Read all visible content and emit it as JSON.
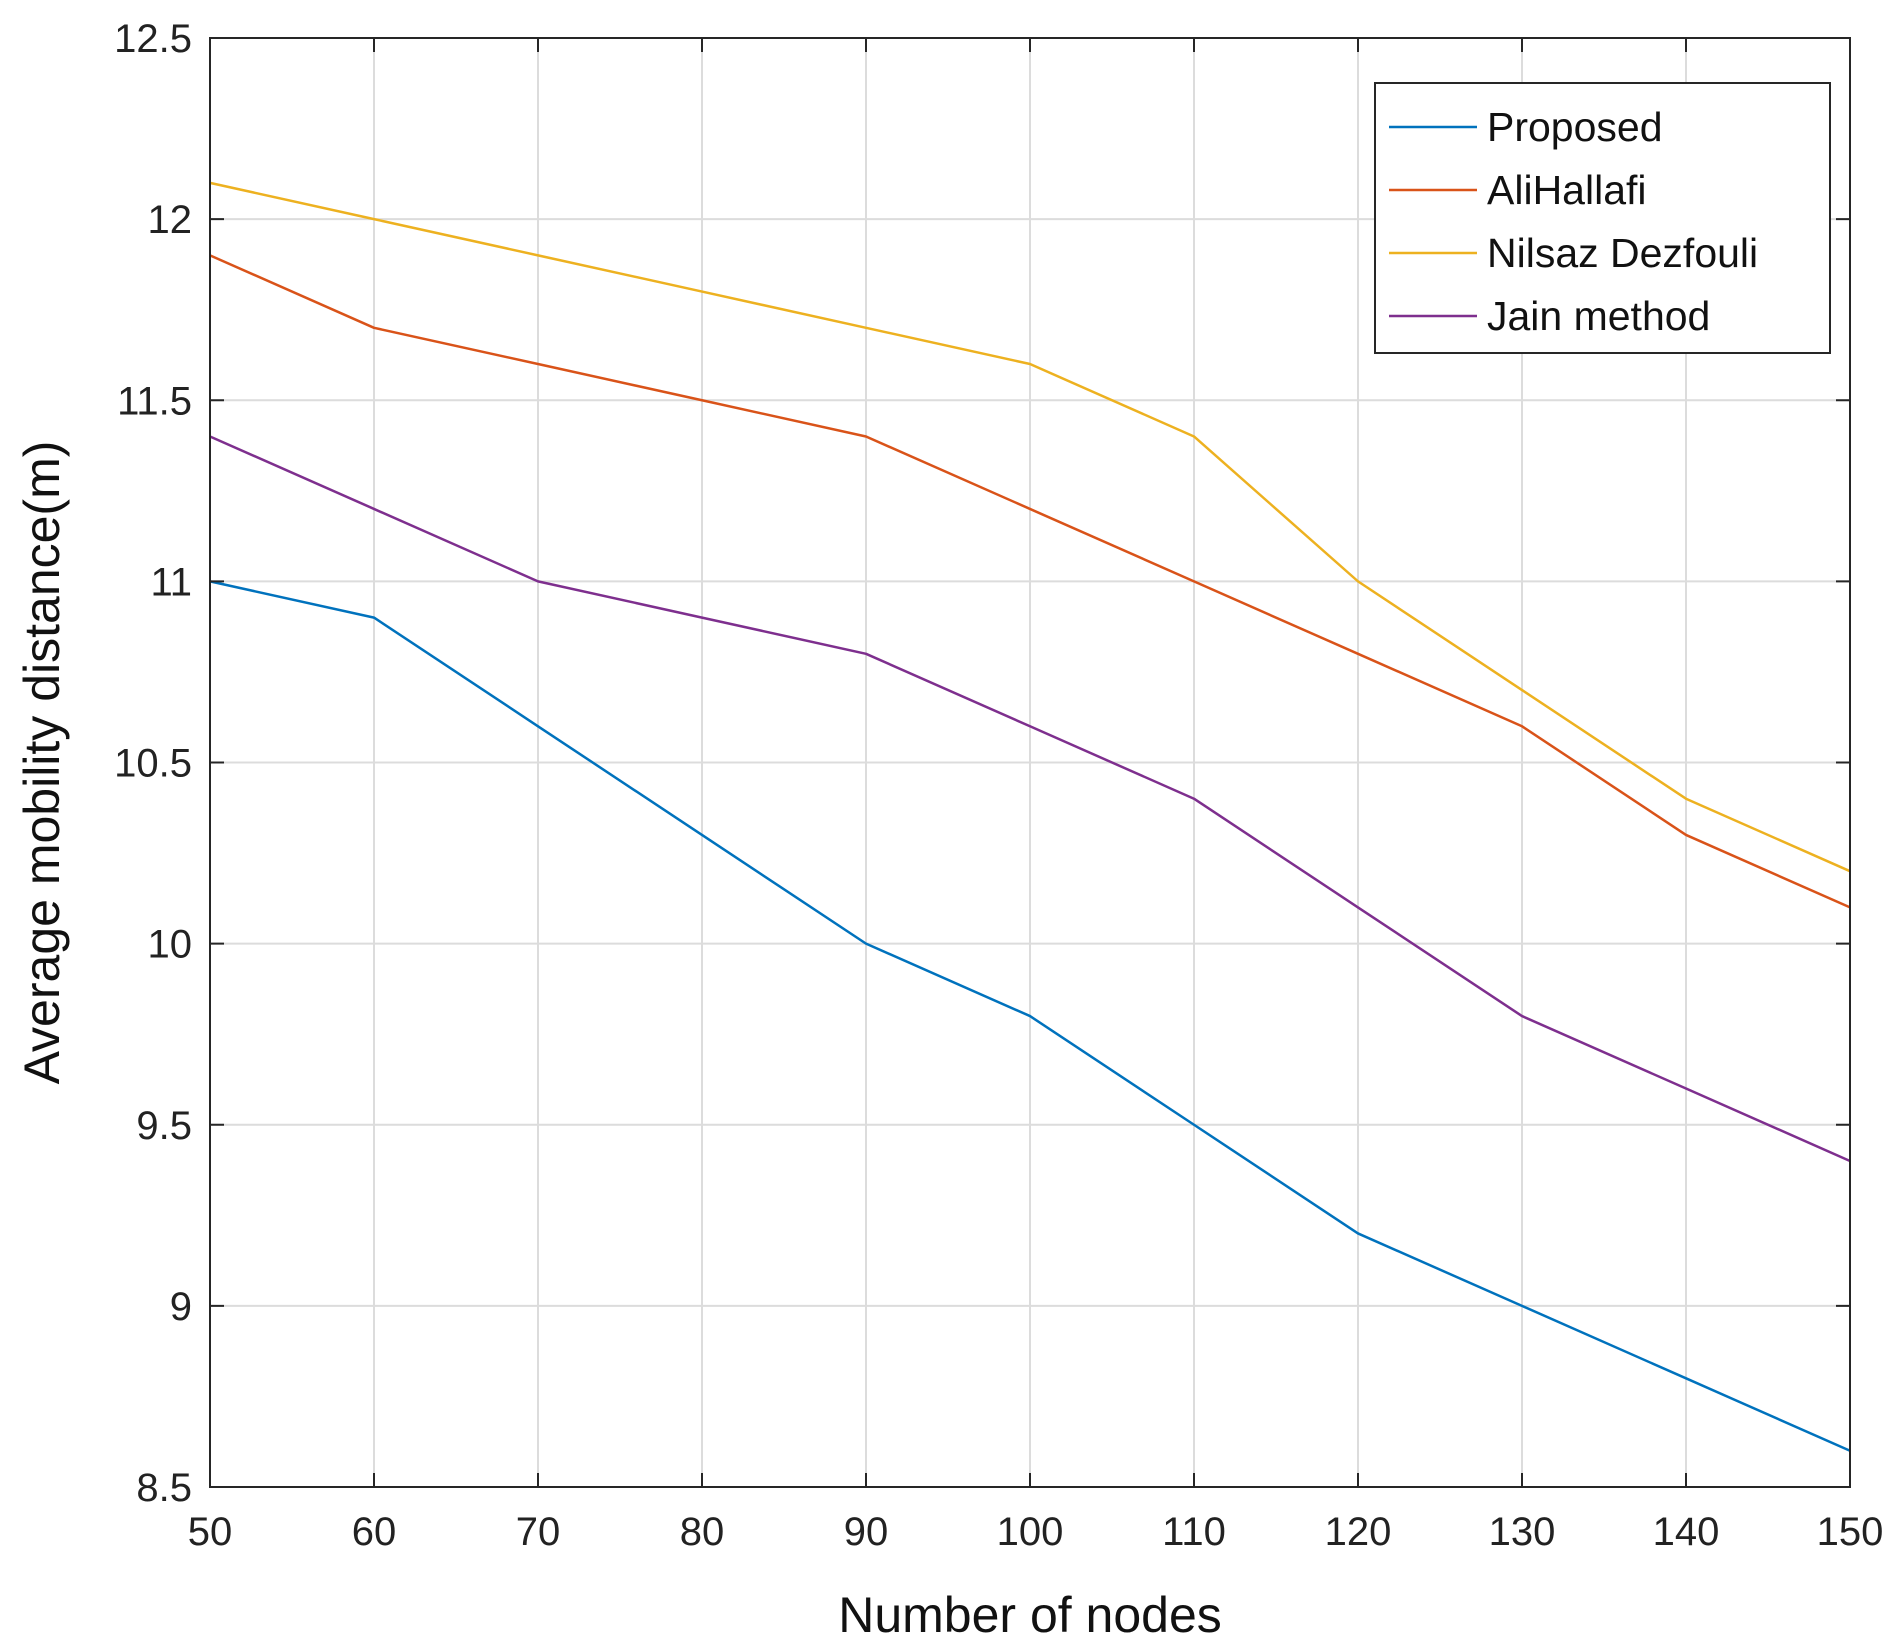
{
  "chart_data": {
    "type": "line",
    "title": "",
    "xlabel": "Number of nodes",
    "ylabel": "Average mobility distance(m)",
    "x": [
      50,
      60,
      70,
      80,
      90,
      100,
      110,
      120,
      130,
      140,
      150
    ],
    "xlim": [
      50,
      150
    ],
    "ylim": [
      8.5,
      12.5
    ],
    "xticks": [
      50,
      60,
      70,
      80,
      90,
      100,
      110,
      120,
      130,
      140,
      150
    ],
    "xtick_labels": [
      "50",
      "60",
      "70",
      "80",
      "90",
      "100",
      "110",
      "120",
      "130",
      "140",
      "150"
    ],
    "yticks": [
      8.5,
      9,
      9.5,
      10,
      10.5,
      11,
      11.5,
      12,
      12.5
    ],
    "ytick_labels": [
      "8.5",
      "9",
      "9.5",
      "10",
      "10.5",
      "11",
      "11.5",
      "12",
      "12.5"
    ],
    "grid": true,
    "legend_position": "top-right",
    "series": [
      {
        "name": "Proposed",
        "color": "#0072bd",
        "values": [
          11.0,
          10.9,
          10.6,
          10.3,
          10.0,
          9.8,
          9.5,
          9.2,
          9.0,
          8.8,
          8.6
        ]
      },
      {
        "name": "AliHallafi",
        "color": "#d95319",
        "values": [
          11.9,
          11.7,
          11.6,
          11.5,
          11.4,
          11.2,
          11.0,
          10.8,
          10.6,
          10.3,
          10.1
        ]
      },
      {
        "name": "Nilsaz Dezfouli",
        "color": "#edb120",
        "values": [
          12.1,
          12.0,
          11.9,
          11.8,
          11.7,
          11.6,
          11.4,
          11.0,
          10.7,
          10.4,
          10.2
        ]
      },
      {
        "name": "Jain method",
        "color": "#7e2f8e",
        "values": [
          11.4,
          11.2,
          11.0,
          10.9,
          10.8,
          10.6,
          10.4,
          10.1,
          9.8,
          9.6,
          9.4
        ]
      }
    ]
  }
}
